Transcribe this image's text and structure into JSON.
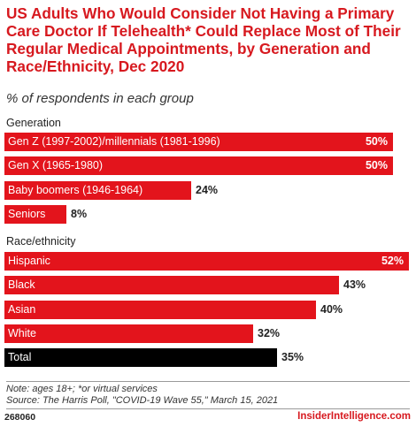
{
  "title": "US Adults Who Would Consider Not Having a Primary Care Doctor If Telehealth* Could Replace Most of Their Regular Medical Appointments, by Generation and Race/Ethnicity, Dec 2020",
  "subtitle": "% of respondents in each group",
  "colors": {
    "accent": "#e3141c",
    "total": "#000000",
    "title": "#d7191f"
  },
  "chart_data": {
    "type": "bar",
    "orientation": "horizontal",
    "value_suffix": "%",
    "xlim": [
      0,
      52
    ],
    "groups": [
      {
        "label": "Generation",
        "categories": [
          "Gen Z (1997-2002)/millennials (1981-1996)",
          "Gen X (1965-1980)",
          "Baby boomers (1946-1964)",
          "Seniors"
        ],
        "values": [
          50,
          50,
          24,
          8
        ]
      },
      {
        "label": "Race/ethnicity",
        "categories": [
          "Hispanic",
          "Black",
          "Asian",
          "White",
          "Total"
        ],
        "values": [
          52,
          43,
          40,
          32,
          35
        ]
      }
    ]
  },
  "footnote": {
    "note": "Note: ages 18+; *or virtual services",
    "source": "Source: The Harris Poll, \"COVID-19 Wave 55,\" March 15, 2021"
  },
  "chart_id": "268060",
  "brand": "InsiderIntelligence.com"
}
